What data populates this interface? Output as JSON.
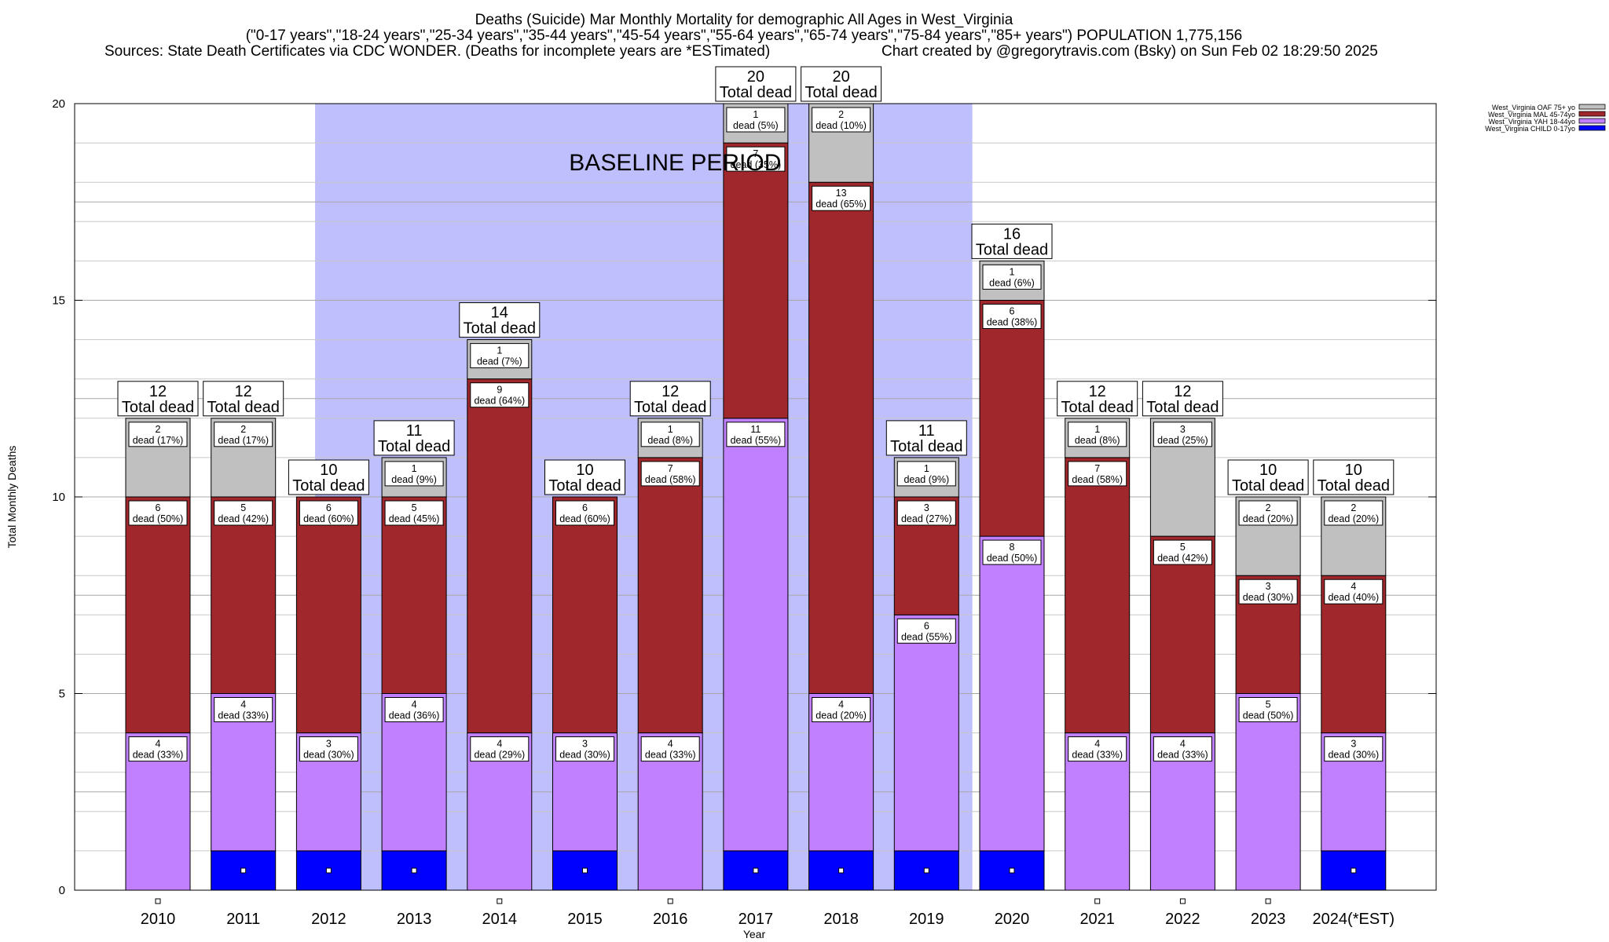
{
  "chart_data": {
    "type": "bar",
    "stacked": true,
    "title_lines": [
      "Deaths (Suicide) Mar Monthly Mortality for demographic All Ages in West_Virginia",
      "(\"0-17 years\",\"18-24 years\",\"25-34 years\",\"35-44 years\",\"45-54 years\",\"55-64 years\",\"65-74 years\",\"75-84 years\",\"85+ years\") POPULATION 1,775,156"
    ],
    "source_left": "Sources: State Death Certificates via CDC WONDER. (Deaths for incomplete years are *ESTimated)",
    "source_right": "Chart created by @gregorytravis.com (Bsky) on Sun Feb 02 18:29:50 2025",
    "xlabel": "Year",
    "ylabel": "Total Monthly Deaths",
    "ylim": [
      0,
      20
    ],
    "yticks": [
      0,
      5,
      10,
      15,
      20
    ],
    "grid": true,
    "legend_position": "top-right, outside plot",
    "baseline_label": "BASELINE PERIOD",
    "baseline_span": [
      "2012",
      "2019"
    ],
    "baseline_color": "#bfbffe",
    "categories": [
      "2010",
      "2011",
      "2012",
      "2013",
      "2014",
      "2015",
      "2016",
      "2017",
      "2018",
      "2019",
      "2020",
      "2021",
      "2022",
      "2023",
      "2024(*EST)"
    ],
    "series": [
      {
        "name": "West_Virginia CHILD 0-17yo",
        "color": "#0000ff",
        "values": [
          0,
          1,
          1,
          1,
          0,
          1,
          0,
          1,
          1,
          1,
          1,
          0,
          0,
          0,
          1
        ]
      },
      {
        "name": "West_Virginia YAH 18-44yo",
        "color": "#c080ff",
        "values": [
          4,
          4,
          3,
          4,
          4,
          3,
          4,
          11,
          4,
          6,
          8,
          4,
          4,
          5,
          3
        ],
        "labels": [
          "4\ndead (33%)",
          "4\ndead (33%)",
          "3\ndead (30%)",
          "4\ndead (36%)",
          "4\ndead (29%)",
          "3\ndead (30%)",
          "4\ndead (33%)",
          "11\ndead (55%)",
          "4\ndead (20%)",
          "6\ndead (55%)",
          "8\ndead (50%)",
          "4\ndead (33%)",
          "4\ndead (33%)",
          "5\ndead (50%)",
          "3\ndead (30%)"
        ]
      },
      {
        "name": "West_Virginia MAL 45-74yo",
        "color": "#a0282c",
        "values": [
          6,
          5,
          6,
          5,
          9,
          6,
          7,
          7,
          13,
          3,
          6,
          7,
          5,
          3,
          4
        ],
        "labels": [
          "6\ndead (50%)",
          "5\ndead (42%)",
          "6\ndead (60%)",
          "5\ndead (45%)",
          "9\ndead (64%)",
          "6\ndead (60%)",
          "7\ndead (58%)",
          "7\ndead (35%)",
          "13\ndead (65%)",
          "3\ndead (27%)",
          "6\ndead (38%)",
          "7\ndead (58%)",
          "5\ndead (42%)",
          "3\ndead (30%)",
          "4\ndead (40%)"
        ]
      },
      {
        "name": "West_Virginia OAF 75+ yo",
        "color": "#c0c0c0",
        "values": [
          2,
          2,
          0,
          1,
          1,
          0,
          1,
          1,
          2,
          1,
          1,
          1,
          3,
          2,
          2
        ],
        "labels": [
          "2\ndead (17%)",
          "2\ndead (17%)",
          "",
          "1\ndead (9%)",
          "1\ndead (7%)",
          "",
          "1\ndead (8%)",
          "1\ndead (5%)",
          "2\ndead (10%)",
          "1\ndead (9%)",
          "1\ndead (6%)",
          "1\ndead (8%)",
          "3\ndead (25%)",
          "2\ndead (20%)",
          "2\ndead (20%)"
        ]
      }
    ],
    "totals": [
      12,
      12,
      10,
      11,
      14,
      10,
      12,
      20,
      20,
      11,
      16,
      12,
      12,
      10,
      10
    ],
    "total_suffix": "Total dead",
    "legend_order": [
      "West_Virginia OAF 75+ yo",
      "West_Virginia MAL 45-74yo",
      "West_Virginia YAH 18-44yo",
      "West_Virginia CHILD 0-17yo"
    ]
  }
}
